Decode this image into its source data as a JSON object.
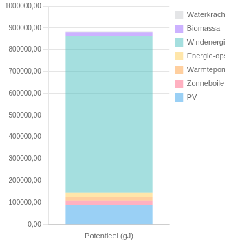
{
  "chart_data": {
    "type": "bar",
    "stacked": true,
    "categories": [
      "Potentieel (gJ)"
    ],
    "series": [
      {
        "name": "PV",
        "values": [
          90000
        ]
      },
      {
        "name": "Zonneboilers",
        "values": [
          20000
        ]
      },
      {
        "name": "Warmtepompen",
        "values": [
          15000
        ]
      },
      {
        "name": "Energie-opslag",
        "values": [
          20000
        ]
      },
      {
        "name": "Windenergie",
        "values": [
          720000
        ]
      },
      {
        "name": "Biomassa",
        "values": [
          15000
        ]
      },
      {
        "name": "Waterkracht",
        "values": [
          5000
        ]
      }
    ],
    "ylim": [
      0,
      1000000
    ],
    "yticks": [
      {
        "value": 0,
        "label": "0,00"
      },
      {
        "value": 100000,
        "label": "100000,00"
      },
      {
        "value": 200000,
        "label": "200000,00"
      },
      {
        "value": 300000,
        "label": "300000,00"
      },
      {
        "value": 400000,
        "label": "400000,00"
      },
      {
        "value": 500000,
        "label": "500000,00"
      },
      {
        "value": 600000,
        "label": "600000,00"
      },
      {
        "value": 700000,
        "label": "700000,00"
      },
      {
        "value": 800000,
        "label": "800000,00"
      },
      {
        "value": 900000,
        "label": "900000,00"
      },
      {
        "value": 1000000,
        "label": "1000000,00"
      }
    ],
    "grid": true,
    "legend": "right"
  }
}
